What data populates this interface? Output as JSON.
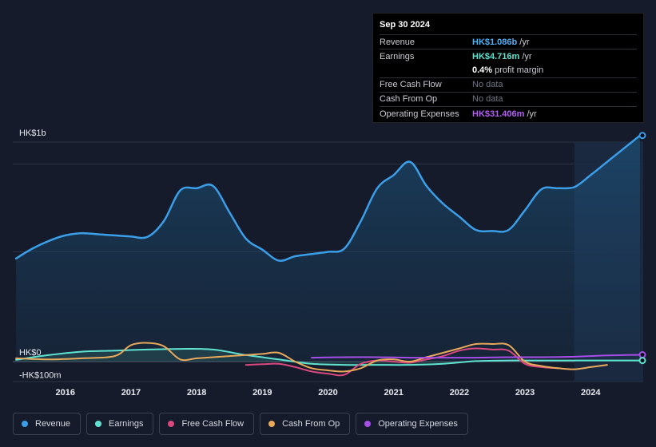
{
  "tooltip": {
    "date": "Sep 30 2024",
    "revenue": {
      "label": "Revenue",
      "value": "HK$1.086b",
      "unit": "/yr",
      "color": "#4fb0f5"
    },
    "earnings": {
      "label": "Earnings",
      "value": "HK$4.716m",
      "unit": "/yr",
      "color": "#5fe3d0"
    },
    "margin": {
      "value": "0.4%",
      "text": "profit margin"
    },
    "fcf": {
      "label": "Free Cash Flow",
      "value": "No data"
    },
    "cfo": {
      "label": "Cash From Op",
      "value": "No data"
    },
    "opex": {
      "label": "Operating Expenses",
      "value": "HK$31.406m",
      "unit": "/yr",
      "color": "#b45ef5"
    }
  },
  "legend": [
    {
      "label": "Revenue",
      "color": "#3a9ee8"
    },
    {
      "label": "Earnings",
      "color": "#5fe3d0"
    },
    {
      "label": "Free Cash Flow",
      "color": "#d9487f"
    },
    {
      "label": "Cash From Op",
      "color": "#e8a95b"
    },
    {
      "label": "Operating Expenses",
      "color": "#a64ee8"
    }
  ],
  "chart_data": {
    "type": "area",
    "y_unit": "HK$ millions",
    "ylim": [
      -100,
      1000
    ],
    "y_tick_labels": [
      {
        "value": 1000,
        "label": "HK$1b"
      },
      {
        "value": 0,
        "label": "HK$0"
      },
      {
        "value": -100,
        "label": "-HK$100m"
      }
    ],
    "xlim": [
      2015.2,
      2024.8
    ],
    "x_ticks": [
      2016,
      2017,
      2018,
      2019,
      2020,
      2021,
      2022,
      2023,
      2024
    ],
    "highlight_from": 2023.75,
    "series": [
      {
        "name": "Revenue",
        "color": "#3a9ee8",
        "fill": true,
        "x": [
          2015.25,
          2015.5,
          2015.75,
          2016.0,
          2016.25,
          2016.5,
          2016.75,
          2017.0,
          2017.25,
          2017.5,
          2017.75,
          2018.0,
          2018.25,
          2018.5,
          2018.75,
          2019.0,
          2019.25,
          2019.5,
          2019.75,
          2020.0,
          2020.25,
          2020.5,
          2020.75,
          2021.0,
          2021.25,
          2021.5,
          2021.75,
          2022.0,
          2022.25,
          2022.5,
          2022.75,
          2023.0,
          2023.25,
          2023.5,
          2023.75,
          2024.0,
          2024.25,
          2024.5,
          2024.75
        ],
        "y": [
          470,
          515,
          550,
          575,
          585,
          580,
          575,
          570,
          568,
          640,
          780,
          790,
          800,
          680,
          560,
          510,
          460,
          480,
          490,
          500,
          515,
          640,
          790,
          850,
          910,
          800,
          720,
          660,
          600,
          595,
          600,
          690,
          785,
          790,
          795,
          850,
          910,
          970,
          1030
        ]
      },
      {
        "name": "Earnings",
        "color": "#5fe3d0",
        "x": [
          2015.25,
          2015.75,
          2016.25,
          2016.75,
          2017.25,
          2017.75,
          2018.25,
          2018.75,
          2019.25,
          2019.75,
          2020.25,
          2020.75,
          2021.25,
          2021.75,
          2022.25,
          2022.75,
          2023.25,
          2023.75,
          2024.25,
          2024.75
        ],
        "y": [
          8,
          30,
          45,
          50,
          55,
          58,
          55,
          30,
          10,
          -10,
          -15,
          -15,
          -15,
          -10,
          2,
          5,
          5,
          5,
          5,
          5
        ]
      },
      {
        "name": "Free Cash Flow",
        "color": "#d9487f",
        "x": [
          2018.75,
          2019.0,
          2019.25,
          2019.5,
          2019.75,
          2020.0,
          2020.25,
          2020.5,
          2020.75,
          2021.0,
          2021.25,
          2021.5,
          2021.75,
          2022.0,
          2022.25,
          2022.5,
          2022.75,
          2023.0,
          2023.25,
          2023.5
        ],
        "y": [
          -15,
          -12,
          -10,
          -25,
          -45,
          -55,
          -60,
          -10,
          5,
          0,
          -5,
          10,
          25,
          50,
          60,
          55,
          50,
          -10,
          -25,
          -30
        ]
      },
      {
        "name": "Cash From Op",
        "color": "#e8a95b",
        "x": [
          2015.25,
          2015.75,
          2016.25,
          2016.75,
          2017.0,
          2017.25,
          2017.5,
          2017.75,
          2018.0,
          2018.25,
          2018.75,
          2019.0,
          2019.25,
          2019.5,
          2019.75,
          2020.0,
          2020.25,
          2020.5,
          2020.75,
          2021.0,
          2021.25,
          2021.5,
          2021.75,
          2022.0,
          2022.25,
          2022.5,
          2022.75,
          2023.0,
          2023.25,
          2023.5,
          2023.75,
          2024.0,
          2024.25
        ],
        "y": [
          15,
          10,
          15,
          25,
          75,
          85,
          70,
          10,
          15,
          20,
          30,
          35,
          40,
          0,
          -30,
          -40,
          -45,
          -30,
          5,
          10,
          0,
          20,
          40,
          60,
          80,
          80,
          75,
          0,
          -20,
          -30,
          -35,
          -25,
          -15
        ]
      },
      {
        "name": "Operating Expenses",
        "color": "#a64ee8",
        "x": [
          2019.75,
          2020.25,
          2020.75,
          2021.25,
          2021.75,
          2022.25,
          2022.75,
          2023.25,
          2023.75,
          2024.25,
          2024.75
        ],
        "y": [
          18,
          20,
          20,
          18,
          18,
          18,
          20,
          20,
          22,
          28,
          31
        ]
      }
    ]
  }
}
